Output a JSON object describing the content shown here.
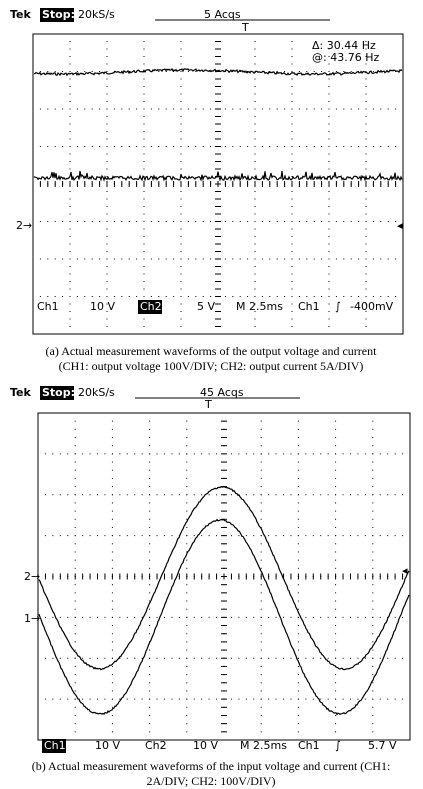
{
  "panels": [
    {
      "brand": "Tek",
      "status": "Stop:",
      "rate": "20kS/s",
      "acqs": "5 Acqs",
      "trigger_marker": "T",
      "measurements": [
        "Δ: 30.44 Hz",
        "@: 43.76 Hz"
      ],
      "channel_markers": [
        "2→"
      ],
      "readout": [
        "Ch1",
        "10 V",
        "Ch2",
        "5 V",
        "M 2.5ms",
        "Ch1",
        "∫",
        "-400mV"
      ],
      "caption": [
        "(a) Actual measurement waveforms of the output voltage and current",
        "(CH1: output voltage 100V/DIV; CH2: output current 5A/DIV)"
      ]
    },
    {
      "brand": "Tek",
      "status": "Stop:",
      "rate": "20kS/s",
      "acqs": "45 Acqs",
      "trigger_marker": "T",
      "channel_markers": [
        "2→",
        "1→"
      ],
      "readout": [
        "Ch1",
        "10 V",
        "Ch2",
        "10 V",
        "M 2.5ms",
        "Ch1",
        "∫",
        "5.7 V"
      ],
      "caption": [
        "(b) Actual measurement waveforms of the input voltage and current (CH1:",
        "2A/DIV; CH2: 100V/DIV)"
      ]
    }
  ]
}
